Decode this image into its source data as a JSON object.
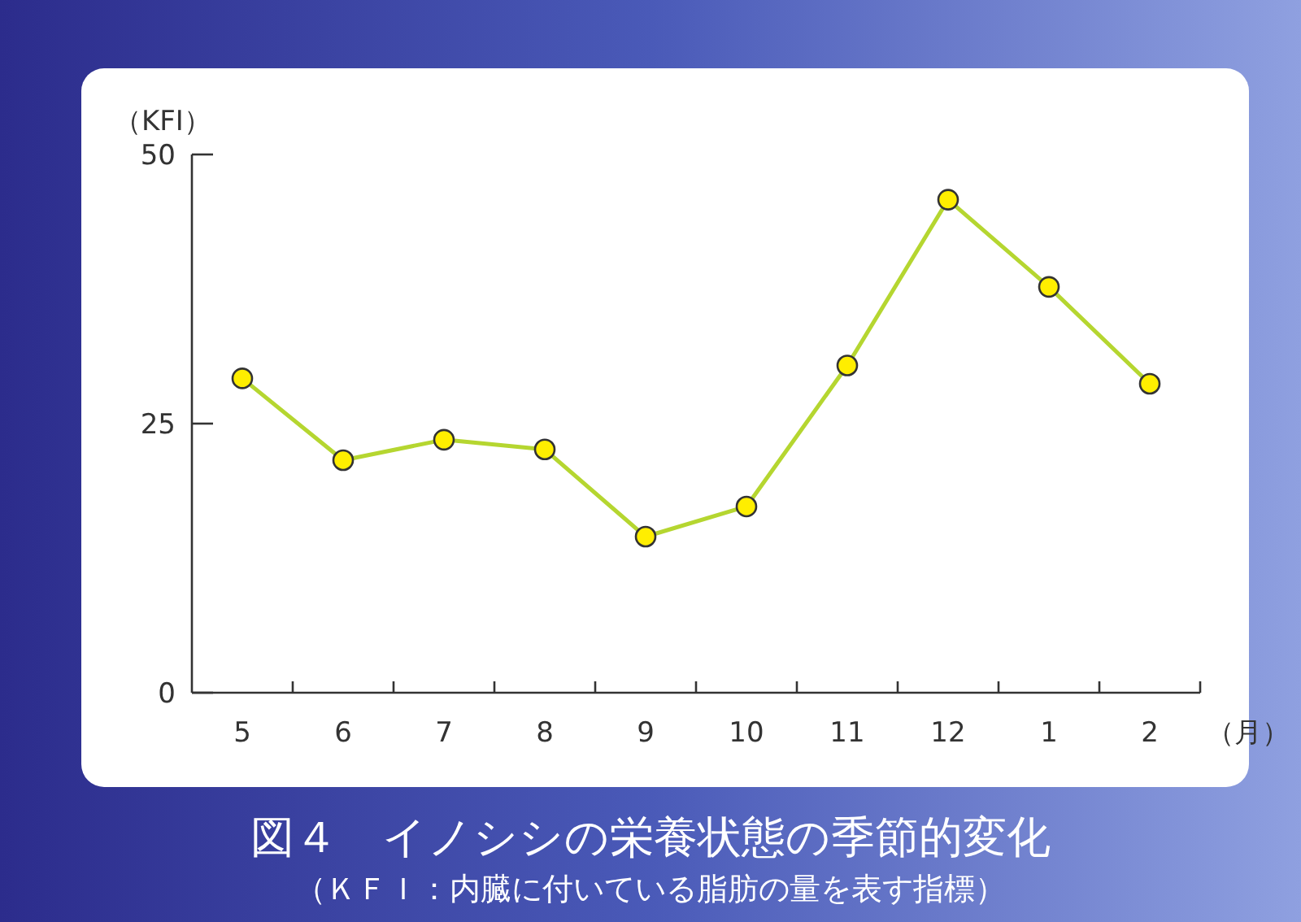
{
  "chart_data": {
    "type": "line",
    "title": "図４　イノシシの栄養状態の季節的変化",
    "subtitle": "（ＫＦＩ：内臓に付いている脂肪の量を表す指標）",
    "ylabel": "（KFI）",
    "xlabel": "（月）",
    "categories": [
      "5",
      "6",
      "7",
      "8",
      "9",
      "10",
      "11",
      "12",
      "1",
      "2"
    ],
    "series": [
      {
        "color": "#b5d630",
        "values": [
          29.2,
          21.6,
          23.5,
          22.6,
          14.5,
          17.3,
          30.4,
          45.8,
          37.7,
          28.7
        ]
      }
    ],
    "ylim": [
      0,
      50
    ],
    "yticks": [
      0,
      25,
      50
    ],
    "marker": "circle",
    "line_style": "solid"
  }
}
